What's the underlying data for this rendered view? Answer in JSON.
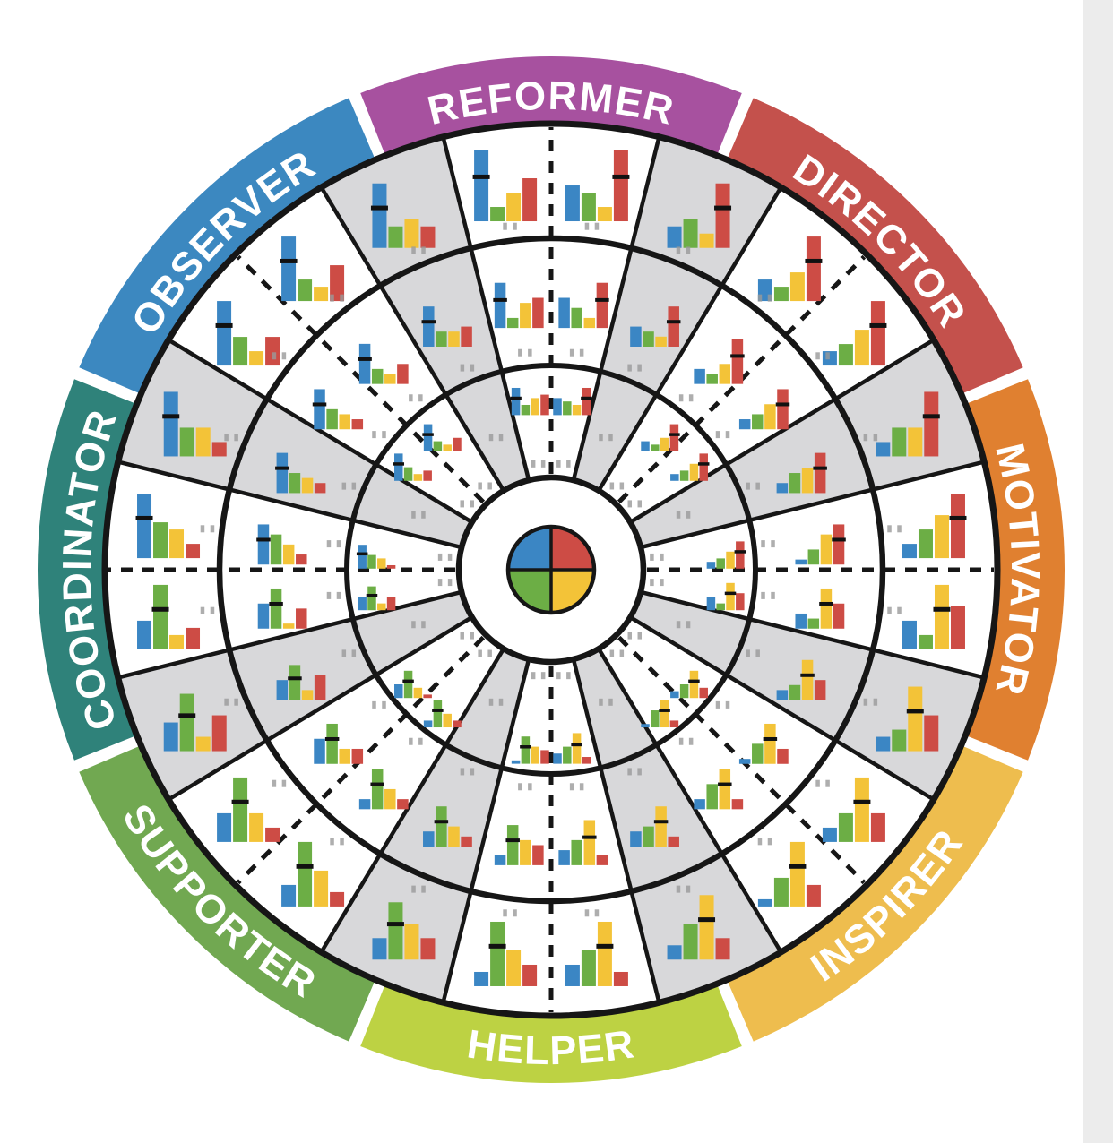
{
  "diagram_title": "personality-type-wheel",
  "bar_order": [
    "blue",
    "green",
    "yellow",
    "red"
  ],
  "bar_colors": {
    "blue": "#3b86c4",
    "green": "#6cae45",
    "yellow": "#f3c338",
    "red": "#cd4c45"
  },
  "styles": {
    "background": "#ffffff",
    "gray_cell": "#d8d8da",
    "line": "#161616",
    "marker": "#111111",
    "tick_mark": "#9a9a9a",
    "right_edge_strip": "#ececec",
    "label_text": "#ffffff"
  },
  "geometry_note": "bars format = [blue,green,yellow,red,marker_bar_index], heights 0-10 scale",
  "center_pie": {
    "quadrants": [
      {
        "position": "top-left",
        "name": "blue",
        "color": "#3b86c4"
      },
      {
        "position": "top-right",
        "name": "red",
        "color": "#cd4c45"
      },
      {
        "position": "bottom-right",
        "name": "yellow",
        "color": "#f3c338"
      },
      {
        "position": "bottom-left",
        "name": "green",
        "color": "#6cae45"
      }
    ]
  },
  "segments": [
    {
      "name": "REFORMER",
      "arc_color": "#a7519f",
      "center_angle_deg": 90,
      "white_charts": {
        "ring1": {
          "side_prev": [
            10,
            2,
            4,
            6,
            0
          ],
          "side_next": [
            5,
            4,
            2,
            10,
            3
          ]
        },
        "ring2": {
          "side_prev": [
            9,
            2,
            5,
            6,
            0
          ],
          "side_next": [
            6,
            4,
            2,
            9,
            3
          ]
        },
        "ring3": {
          "side_prev": [
            8,
            3,
            5,
            6,
            0
          ],
          "side_next": [
            5,
            4,
            3,
            8,
            3
          ]
        }
      }
    },
    {
      "name": "DIRECTOR",
      "arc_color": "#c4514c",
      "center_angle_deg": 45,
      "white_charts": {
        "ring1": {
          "side_prev": [
            3,
            2,
            4,
            9,
            3
          ],
          "side_next": [
            2,
            3,
            5,
            9,
            3
          ]
        },
        "ring2": {
          "side_prev": [
            3,
            2,
            4,
            9,
            3
          ],
          "side_next": [
            2,
            3,
            5,
            8,
            3
          ]
        },
        "ring3": {
          "side_prev": [
            3,
            2,
            4,
            8,
            3
          ],
          "side_next": [
            2,
            3,
            5,
            8,
            3
          ]
        }
      }
    },
    {
      "name": "MOTIVATOR",
      "arc_color": "#e08030",
      "center_angle_deg": 0,
      "white_charts": {
        "ring1": {
          "side_prev": [
            2,
            4,
            6,
            9,
            3
          ],
          "side_next": [
            4,
            2,
            9,
            6,
            2
          ]
        },
        "ring2": {
          "side_prev": [
            1,
            3,
            6,
            8,
            3
          ],
          "side_next": [
            3,
            2,
            8,
            5,
            2
          ]
        },
        "ring3": {
          "side_prev": [
            2,
            3,
            5,
            8,
            3
          ],
          "side_next": [
            4,
            2,
            8,
            5,
            2
          ]
        }
      }
    },
    {
      "name": "INSPIRER",
      "arc_color": "#eebd4e",
      "center_angle_deg": -45,
      "white_charts": {
        "ring1": {
          "side_prev": [
            2,
            4,
            9,
            4,
            2
          ],
          "side_next": [
            1,
            4,
            9,
            3,
            2
          ]
        },
        "ring2": {
          "side_prev": [
            1,
            4,
            8,
            3,
            2
          ],
          "side_next": [
            2,
            5,
            8,
            2,
            2
          ]
        },
        "ring3": {
          "side_prev": [
            2,
            4,
            8,
            3,
            2
          ],
          "side_next": [
            1,
            5,
            8,
            2,
            2
          ]
        }
      }
    },
    {
      "name": "HELPER",
      "arc_color": "#bdd243",
      "center_angle_deg": -90,
      "white_charts": {
        "ring1": {
          "side_prev": [
            3,
            5,
            9,
            2,
            2
          ],
          "side_next": [
            2,
            9,
            5,
            3,
            1
          ]
        },
        "ring2": {
          "side_prev": [
            3,
            5,
            9,
            2,
            2
          ],
          "side_next": [
            2,
            8,
            5,
            4,
            1
          ]
        },
        "ring3": {
          "side_prev": [
            3,
            5,
            9,
            2,
            2
          ],
          "side_next": [
            1,
            8,
            5,
            4,
            1
          ]
        }
      }
    },
    {
      "name": "SUPPORTER",
      "arc_color": "#71a851",
      "center_angle_deg": -135,
      "white_charts": {
        "ring1": {
          "side_prev": [
            3,
            9,
            5,
            2,
            1
          ],
          "side_next": [
            4,
            9,
            4,
            2,
            1
          ]
        },
        "ring2": {
          "side_prev": [
            2,
            8,
            4,
            2,
            1
          ],
          "side_next": [
            5,
            8,
            3,
            3,
            1
          ]
        },
        "ring3": {
          "side_prev": [
            2,
            8,
            4,
            2,
            1
          ],
          "side_next": [
            4,
            8,
            3,
            1,
            1
          ]
        }
      }
    },
    {
      "name": "COORDINATOR",
      "arc_color": "#2f827a",
      "center_angle_deg": 180,
      "white_charts": {
        "ring1": {
          "side_prev": [
            4,
            9,
            2,
            3,
            1
          ],
          "side_next": [
            9,
            5,
            4,
            2,
            0
          ]
        },
        "ring2": {
          "side_prev": [
            5,
            8,
            1,
            4,
            1
          ],
          "side_next": [
            8,
            6,
            4,
            2,
            0
          ]
        },
        "ring3": {
          "side_prev": [
            4,
            7,
            2,
            4,
            1
          ],
          "side_next": [
            7,
            4,
            3,
            1,
            0
          ]
        }
      }
    },
    {
      "name": "OBSERVER",
      "arc_color": "#3c88c0",
      "center_angle_deg": 135,
      "white_charts": {
        "ring1": {
          "side_prev": [
            9,
            4,
            2,
            4,
            0
          ],
          "side_next": [
            9,
            3,
            2,
            5,
            0
          ]
        },
        "ring2": {
          "side_prev": [
            8,
            4,
            3,
            2,
            0
          ],
          "side_next": [
            8,
            3,
            2,
            4,
            0
          ]
        },
        "ring3": {
          "side_prev": [
            8,
            4,
            2,
            3,
            0
          ],
          "side_next": [
            8,
            3,
            2,
            4,
            0
          ]
        }
      }
    }
  ],
  "boundary_charts": [
    {
      "between": [
        "REFORMER",
        "DIRECTOR"
      ],
      "ring1": [
        3,
        4,
        2,
        9,
        3
      ],
      "ring2": [
        4,
        3,
        2,
        8,
        3
      ]
    },
    {
      "between": [
        "DIRECTOR",
        "MOTIVATOR"
      ],
      "ring1": [
        2,
        4,
        4,
        9,
        3
      ],
      "ring2": [
        2,
        4,
        5,
        8,
        3
      ]
    },
    {
      "between": [
        "MOTIVATOR",
        "INSPIRER"
      ],
      "ring1": [
        2,
        3,
        9,
        5,
        2
      ],
      "ring2": [
        2,
        3,
        8,
        4,
        2
      ]
    },
    {
      "between": [
        "INSPIRER",
        "HELPER"
      ],
      "ring1": [
        2,
        5,
        9,
        3,
        2
      ],
      "ring2": [
        3,
        4,
        8,
        2,
        2
      ]
    },
    {
      "between": [
        "HELPER",
        "SUPPORTER"
      ],
      "ring1": [
        3,
        8,
        5,
        3,
        1
      ],
      "ring2": [
        3,
        8,
        4,
        2,
        1
      ]
    },
    {
      "between": [
        "SUPPORTER",
        "COORDINATOR"
      ],
      "ring1": [
        4,
        8,
        2,
        5,
        1
      ],
      "ring2": [
        4,
        7,
        2,
        5,
        1
      ]
    },
    {
      "between": [
        "COORDINATOR",
        "OBSERVER"
      ],
      "ring1": [
        9,
        4,
        4,
        2,
        0
      ],
      "ring2": [
        8,
        4,
        3,
        2,
        0
      ]
    },
    {
      "between": [
        "OBSERVER",
        "REFORMER"
      ],
      "ring1": [
        9,
        3,
        4,
        3,
        0
      ],
      "ring2": [
        8,
        3,
        3,
        4,
        0
      ]
    }
  ]
}
